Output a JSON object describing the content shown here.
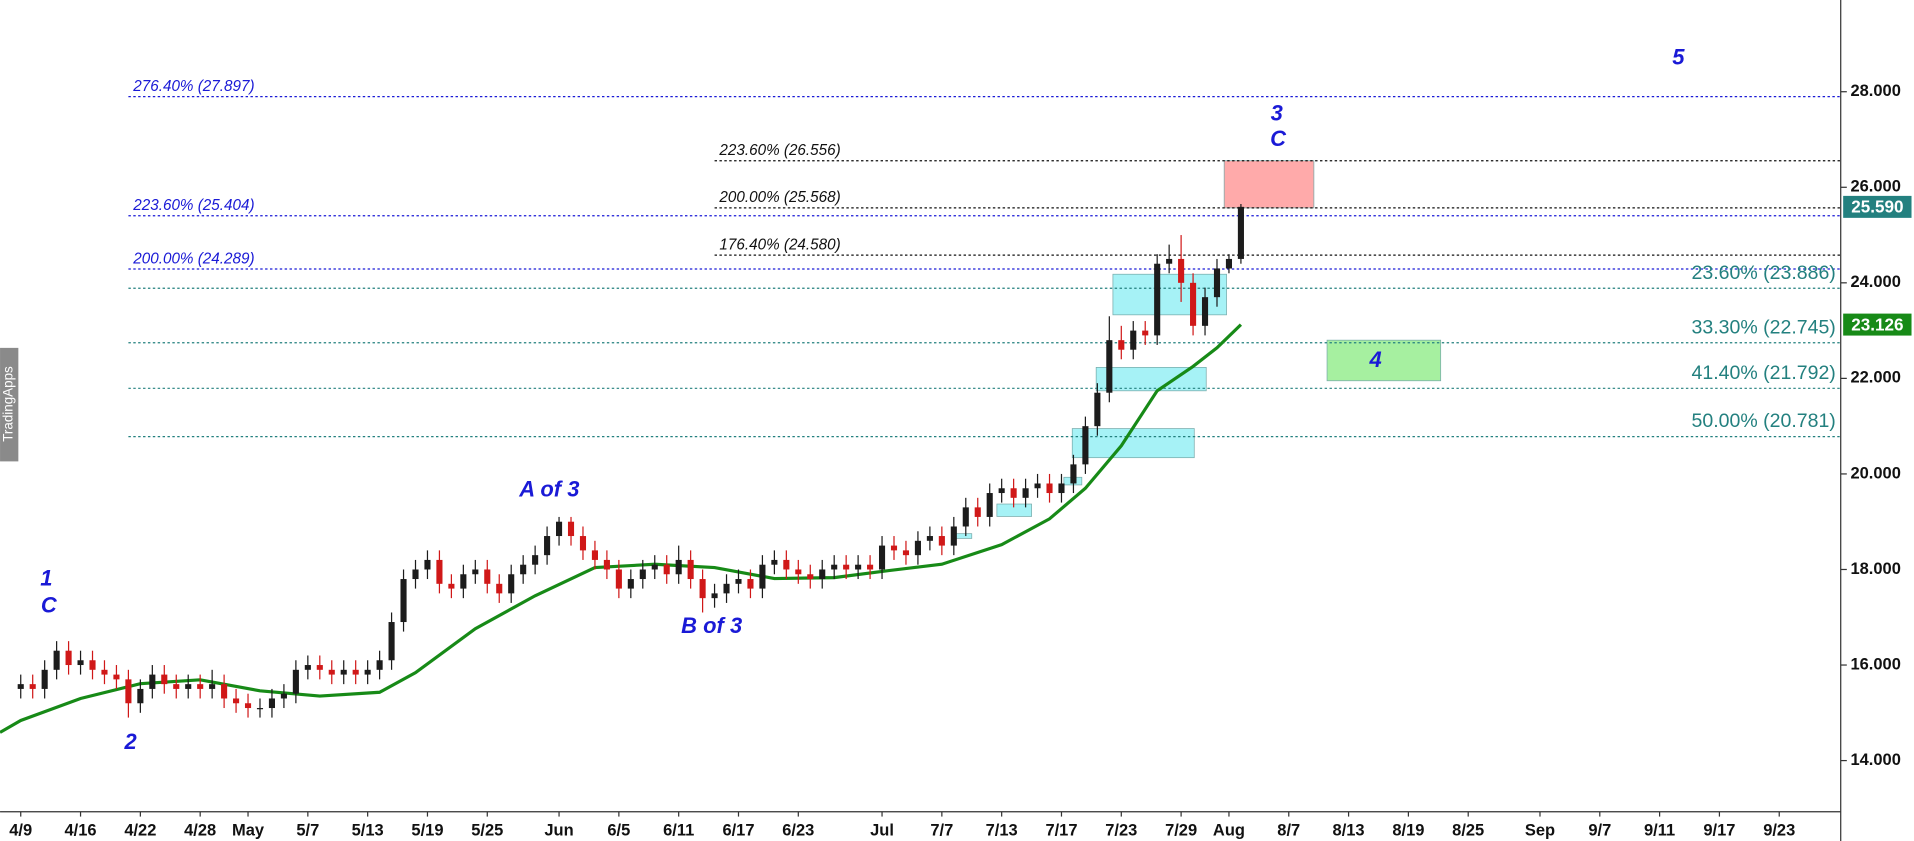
{
  "watermark": "TradingApps",
  "chart_data": {
    "type": "candlestick",
    "xlim": [
      -1.73,
      152.14
    ],
    "ylim": [
      12.93,
      29.92
    ],
    "yticks": [
      {
        "value": 14,
        "label": "14.000"
      },
      {
        "value": 16,
        "label": "16.000"
      },
      {
        "value": 18,
        "label": "18.000"
      },
      {
        "value": 20,
        "label": "20.000"
      },
      {
        "value": 22,
        "label": "22.000"
      },
      {
        "value": 24,
        "label": "24.000"
      },
      {
        "value": 26,
        "label": "26.000"
      },
      {
        "value": 28,
        "label": "28.000"
      }
    ],
    "xticks": [
      {
        "value": 0,
        "label": "4/9"
      },
      {
        "value": 5,
        "label": "4/16"
      },
      {
        "value": 10,
        "label": "4/22"
      },
      {
        "value": 15,
        "label": "4/28"
      },
      {
        "value": 19,
        "label": "May"
      },
      {
        "value": 24,
        "label": "5/7"
      },
      {
        "value": 29,
        "label": "5/13"
      },
      {
        "value": 34,
        "label": "5/19"
      },
      {
        "value": 39,
        "label": "5/25"
      },
      {
        "value": 45,
        "label": "Jun"
      },
      {
        "value": 50,
        "label": "6/5"
      },
      {
        "value": 55,
        "label": "6/11"
      },
      {
        "value": 60,
        "label": "6/17"
      },
      {
        "value": 65,
        "label": "6/23"
      },
      {
        "value": 72,
        "label": "Jul"
      },
      {
        "value": 77,
        "label": "7/7"
      },
      {
        "value": 82,
        "label": "7/13"
      },
      {
        "value": 87,
        "label": "7/17"
      },
      {
        "value": 92,
        "label": "7/23"
      },
      {
        "value": 97,
        "label": "7/29"
      },
      {
        "value": 101,
        "label": "Aug"
      },
      {
        "value": 106,
        "label": "8/7"
      },
      {
        "value": 111,
        "label": "8/13"
      },
      {
        "value": 116,
        "label": "8/19"
      },
      {
        "value": 121,
        "label": "8/25"
      },
      {
        "value": 127,
        "label": "Sep"
      },
      {
        "value": 132,
        "label": "9/7"
      },
      {
        "value": 137,
        "label": "9/11"
      },
      {
        "value": 142,
        "label": "9/17"
      },
      {
        "value": 147,
        "label": "9/23"
      }
    ],
    "up_color": "#1c1c1c",
    "down_color": "#d01818",
    "x": [
      0,
      1,
      2,
      3,
      4,
      5,
      6,
      7,
      8,
      9,
      10,
      11,
      12,
      13,
      14,
      15,
      16,
      17,
      18,
      19,
      20,
      21,
      22,
      23,
      24,
      25,
      26,
      27,
      28,
      29,
      30,
      31,
      32,
      33,
      34,
      35,
      36,
      37,
      38,
      39,
      40,
      41,
      42,
      43,
      44,
      45,
      46,
      47,
      48,
      49,
      50,
      51,
      52,
      53,
      54,
      55,
      56,
      57,
      58,
      59,
      60,
      61,
      62,
      63,
      64,
      65,
      66,
      67,
      68,
      69,
      70,
      71,
      72,
      73,
      74,
      75,
      76,
      77,
      78,
      79,
      80,
      81,
      82,
      83,
      84,
      85,
      86,
      87,
      88,
      89,
      90,
      91,
      92,
      93,
      94,
      95,
      96,
      97,
      98,
      99,
      100,
      101,
      102
    ],
    "open": [
      15.5,
      15.6,
      15.5,
      15.9,
      16.3,
      16.0,
      16.1,
      15.9,
      15.8,
      15.7,
      15.2,
      15.5,
      15.8,
      15.6,
      15.5,
      15.6,
      15.5,
      15.6,
      15.3,
      15.2,
      15.1,
      15.1,
      15.3,
      15.4,
      15.9,
      16.0,
      15.9,
      15.8,
      15.9,
      15.8,
      15.9,
      16.1,
      16.9,
      17.8,
      18.0,
      18.2,
      17.7,
      17.6,
      17.9,
      18.0,
      17.7,
      17.5,
      17.9,
      18.1,
      18.3,
      18.7,
      19.0,
      18.7,
      18.4,
      18.2,
      18.0,
      17.6,
      17.8,
      18.0,
      18.1,
      17.9,
      18.2,
      17.8,
      17.4,
      17.5,
      17.7,
      17.8,
      17.6,
      18.1,
      18.2,
      18.0,
      17.9,
      17.8,
      18.0,
      18.1,
      18.0,
      18.1,
      18.0,
      18.5,
      18.4,
      18.3,
      18.6,
      18.7,
      18.5,
      18.9,
      19.3,
      19.1,
      19.6,
      19.7,
      19.5,
      19.7,
      19.8,
      19.6,
      19.8,
      20.2,
      21.0,
      21.7,
      22.8,
      22.6,
      23.0,
      22.9,
      24.4,
      24.5,
      24.0,
      23.1,
      23.7,
      24.3,
      24.5
    ],
    "high": [
      15.8,
      15.8,
      16.1,
      16.5,
      16.5,
      16.3,
      16.3,
      16.1,
      16.0,
      15.9,
      15.7,
      16.0,
      16.0,
      15.8,
      15.8,
      15.8,
      15.9,
      15.8,
      15.5,
      15.4,
      15.3,
      15.5,
      15.6,
      16.1,
      16.2,
      16.2,
      16.1,
      16.1,
      16.1,
      16.1,
      16.3,
      17.1,
      18.0,
      18.2,
      18.4,
      18.4,
      17.9,
      18.1,
      18.2,
      18.2,
      17.9,
      18.1,
      18.3,
      18.5,
      18.9,
      19.1,
      19.1,
      18.9,
      18.6,
      18.4,
      18.2,
      18.0,
      18.2,
      18.3,
      18.3,
      18.5,
      18.4,
      18.0,
      17.7,
      17.9,
      18.0,
      18.0,
      18.3,
      18.4,
      18.4,
      18.2,
      18.1,
      18.2,
      18.3,
      18.3,
      18.3,
      18.3,
      18.7,
      18.7,
      18.6,
      18.8,
      18.9,
      18.9,
      19.1,
      19.5,
      19.5,
      19.8,
      19.9,
      19.9,
      19.9,
      20.0,
      20.0,
      20.0,
      20.4,
      21.2,
      21.9,
      23.3,
      23.1,
      23.2,
      23.2,
      24.6,
      24.8,
      25.0,
      24.2,
      23.9,
      24.5,
      24.6,
      25.65
    ],
    "low": [
      15.3,
      15.3,
      15.3,
      15.7,
      15.8,
      15.8,
      15.7,
      15.6,
      15.5,
      14.9,
      15.0,
      15.3,
      15.4,
      15.3,
      15.3,
      15.3,
      15.3,
      15.1,
      15.0,
      14.9,
      14.9,
      14.9,
      15.1,
      15.2,
      15.7,
      15.7,
      15.6,
      15.6,
      15.6,
      15.6,
      15.7,
      15.9,
      16.7,
      17.6,
      17.8,
      17.5,
      17.4,
      17.4,
      17.7,
      17.5,
      17.3,
      17.3,
      17.7,
      17.9,
      18.1,
      18.5,
      18.5,
      18.2,
      18.0,
      17.8,
      17.4,
      17.4,
      17.6,
      17.8,
      17.7,
      17.7,
      17.6,
      17.1,
      17.2,
      17.3,
      17.5,
      17.4,
      17.4,
      17.9,
      17.8,
      17.7,
      17.6,
      17.6,
      17.8,
      17.8,
      17.8,
      17.8,
      17.8,
      18.2,
      18.1,
      18.1,
      18.4,
      18.3,
      18.3,
      18.7,
      18.9,
      18.9,
      19.4,
      19.3,
      19.3,
      19.5,
      19.4,
      19.4,
      19.6,
      20.0,
      20.8,
      21.5,
      22.4,
      22.4,
      22.7,
      22.7,
      24.2,
      23.6,
      22.9,
      22.9,
      23.5,
      24.2,
      24.4
    ],
    "close": [
      15.6,
      15.5,
      15.9,
      16.3,
      16.0,
      16.1,
      15.9,
      15.8,
      15.7,
      15.2,
      15.5,
      15.8,
      15.6,
      15.5,
      15.6,
      15.5,
      15.6,
      15.3,
      15.2,
      15.1,
      15.1,
      15.3,
      15.4,
      15.9,
      16.0,
      15.9,
      15.8,
      15.9,
      15.8,
      15.9,
      16.1,
      16.9,
      17.8,
      18.0,
      18.2,
      17.7,
      17.6,
      17.9,
      18.0,
      17.7,
      17.5,
      17.9,
      18.1,
      18.3,
      18.7,
      19.0,
      18.7,
      18.4,
      18.2,
      18.0,
      17.6,
      17.8,
      18.0,
      18.1,
      17.9,
      18.2,
      17.8,
      17.4,
      17.5,
      17.7,
      17.8,
      17.6,
      18.1,
      18.2,
      18.0,
      17.9,
      17.8,
      18.0,
      18.1,
      18.0,
      18.1,
      18.0,
      18.5,
      18.4,
      18.3,
      18.6,
      18.7,
      18.5,
      18.9,
      19.3,
      19.1,
      19.6,
      19.7,
      19.5,
      19.7,
      19.8,
      19.6,
      19.8,
      20.2,
      21.0,
      21.7,
      22.8,
      22.6,
      23.0,
      22.9,
      24.4,
      24.5,
      24.0,
      23.1,
      23.7,
      24.3,
      24.5,
      25.59
    ],
    "ma": {
      "color": "#178a17",
      "x": [
        -1.73,
        0,
        5,
        10,
        15,
        20,
        25,
        30,
        33,
        38,
        43,
        48,
        53,
        58,
        63,
        68,
        72,
        77,
        82,
        86,
        89,
        92,
        95,
        98,
        100,
        102
      ],
      "values": [
        14.59,
        14.84,
        15.3,
        15.61,
        15.69,
        15.46,
        15.35,
        15.43,
        15.84,
        16.76,
        17.45,
        18.04,
        18.11,
        18.04,
        17.81,
        17.83,
        17.96,
        18.11,
        18.52,
        19.06,
        19.7,
        20.59,
        21.74,
        22.25,
        22.64,
        23.126
      ]
    },
    "tags": [
      {
        "value": 25.59,
        "label": "25.590",
        "color": "#23807f"
      },
      {
        "value": 23.126,
        "label": "23.126",
        "color": "#178a17"
      }
    ],
    "fib_levels": [
      {
        "x": 9,
        "value": 27.897,
        "label": "276.40% (27.897)",
        "color": "#1a1ad6",
        "label_side": "left"
      },
      {
        "x": 9,
        "value": 25.404,
        "label": "223.60% (25.404)",
        "color": "#1a1ad6",
        "label_side": "left"
      },
      {
        "x": 9,
        "value": 24.289,
        "label": "200.00% (24.289)",
        "color": "#1a1ad6",
        "label_side": "left"
      },
      {
        "x": 58,
        "value": 26.556,
        "label": "223.60% (26.556)",
        "color": "#111111",
        "label_side": "left"
      },
      {
        "x": 58,
        "value": 25.568,
        "label": "200.00% (25.568)",
        "color": "#111111",
        "label_side": "left"
      },
      {
        "x": 58,
        "value": 24.58,
        "label": "176.40% (24.580)",
        "color": "#111111",
        "label_side": "left"
      },
      {
        "x": 9,
        "value": 23.886,
        "label": "23.60% (23.886)",
        "color": "#23807f",
        "label_side": "right"
      },
      {
        "x": 9,
        "value": 22.745,
        "label": "33.30% (22.745)",
        "color": "#23807f",
        "label_side": "right"
      },
      {
        "x": 9,
        "value": 21.792,
        "label": "41.40% (21.792)",
        "color": "#23807f",
        "label_side": "right"
      },
      {
        "x": 9,
        "value": 20.781,
        "label": "50.00% (20.781)",
        "color": "#23807f",
        "label_side": "right"
      }
    ],
    "zones": [
      {
        "x": [
          100.6,
          108.1
        ],
        "y": [
          25.568,
          26.556
        ],
        "color": "#ffaaaa"
      },
      {
        "x": [
          109.2,
          118.7
        ],
        "y": [
          21.95,
          22.8
        ],
        "color": "#a6f0a0"
      },
      {
        "x": [
          91.3,
          100.8
        ],
        "y": [
          23.33,
          24.18
        ],
        "color": "#a6f2f6"
      },
      {
        "x": [
          89.9,
          99.1
        ],
        "y": [
          21.74,
          22.23
        ],
        "color": "#a6f2f6"
      },
      {
        "x": [
          87.9,
          98.1
        ],
        "y": [
          20.34,
          20.95
        ],
        "color": "#a6f2f6"
      },
      {
        "x": [
          81.6,
          84.5
        ],
        "y": [
          19.11,
          19.37
        ],
        "color": "#a6f2f6"
      },
      {
        "x": [
          87.2,
          88.7
        ],
        "y": [
          19.77,
          19.93
        ],
        "color": "#a6f2f6"
      },
      {
        "x": [
          77.9,
          79.5
        ],
        "y": [
          18.65,
          18.75
        ],
        "color": "#a6f2f6"
      }
    ],
    "annotations": [
      "1",
      "C",
      "2",
      "A of 3",
      "B of 3",
      "3",
      "C",
      "4",
      "5"
    ]
  }
}
